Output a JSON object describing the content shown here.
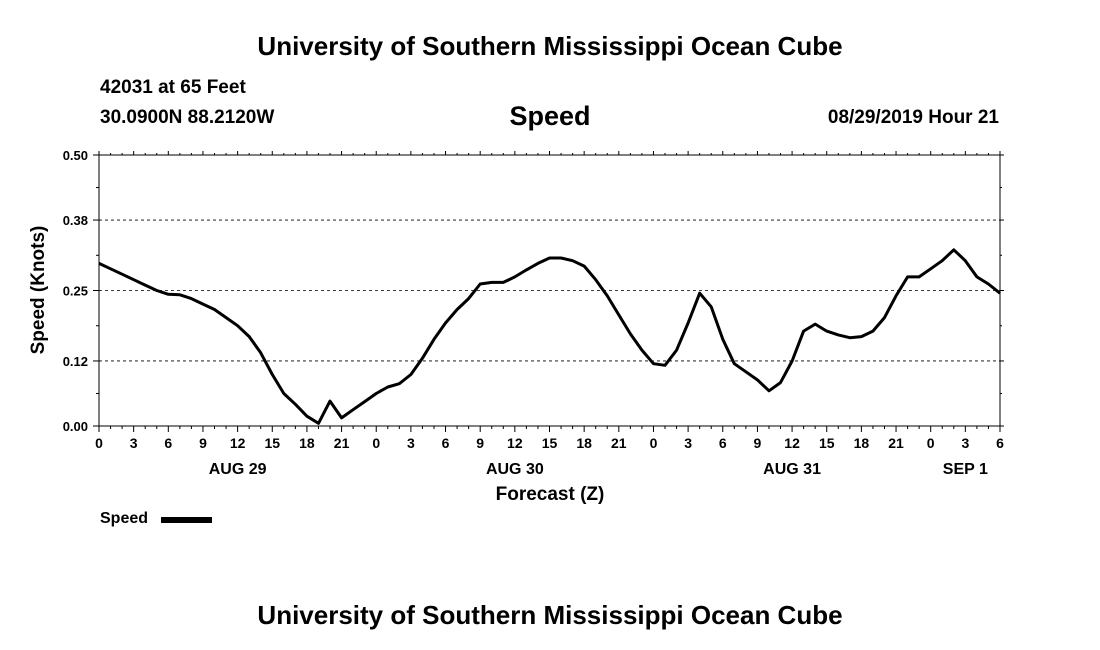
{
  "page": {
    "title_top": "University of Southern Mississippi Ocean Cube",
    "title_bottom": "University of Southern Mississippi Ocean Cube",
    "station": "42031 at 65 Feet",
    "location": "30.0900N 88.2120W",
    "variable": "Speed",
    "datetime": "08/29/2019 Hour 21"
  },
  "legend": {
    "label": "Speed"
  },
  "chart_data": {
    "type": "line",
    "title": "Speed",
    "xlabel": "Forecast (Z)",
    "ylabel": "Speed (Knots)",
    "xlim": [
      0,
      78
    ],
    "ylim": [
      0,
      0.5
    ],
    "yticks": [
      0.0,
      0.12,
      0.25,
      0.38,
      0.5
    ],
    "ytick_labels": [
      "0.00",
      "0.12",
      "0.25",
      "0.38",
      "0.50"
    ],
    "xtick_labels": [
      "0",
      "3",
      "6",
      "9",
      "12",
      "15",
      "18",
      "21",
      "0",
      "3",
      "6",
      "9",
      "12",
      "15",
      "18",
      "21",
      "0",
      "3",
      "6",
      "9",
      "12",
      "15",
      "18",
      "21",
      "0",
      "3",
      "6"
    ],
    "day_labels": [
      {
        "label": "AUG 29",
        "x": 12
      },
      {
        "label": "AUG 30",
        "x": 36
      },
      {
        "label": "AUG 31",
        "x": 60
      },
      {
        "label": "SEP 1",
        "x": 75
      }
    ],
    "grid": "dashed-y",
    "series": [
      {
        "name": "Speed",
        "color": "#000000",
        "x": [
          0,
          1,
          2,
          3,
          4,
          5,
          6,
          7,
          8,
          9,
          10,
          11,
          12,
          13,
          14,
          15,
          16,
          17,
          18,
          19,
          20,
          21,
          22,
          23,
          24,
          25,
          26,
          27,
          28,
          29,
          30,
          31,
          32,
          33,
          34,
          35,
          36,
          37,
          38,
          39,
          40,
          41,
          42,
          43,
          44,
          45,
          46,
          47,
          48,
          49,
          50,
          51,
          52,
          53,
          54,
          55,
          56,
          57,
          58,
          59,
          60,
          61,
          62,
          63,
          64,
          65,
          66,
          67,
          68,
          69,
          70,
          71,
          72,
          73,
          74,
          75,
          76,
          77,
          78
        ],
        "values": [
          0.3,
          0.29,
          0.28,
          0.27,
          0.26,
          0.25,
          0.243,
          0.242,
          0.235,
          0.225,
          0.215,
          0.2,
          0.185,
          0.165,
          0.135,
          0.095,
          0.06,
          0.04,
          0.018,
          0.005,
          0.046,
          0.015,
          0.03,
          0.045,
          0.06,
          0.072,
          0.078,
          0.095,
          0.125,
          0.16,
          0.19,
          0.215,
          0.235,
          0.262,
          0.265,
          0.265,
          0.275,
          0.288,
          0.3,
          0.31,
          0.31,
          0.305,
          0.295,
          0.27,
          0.24,
          0.205,
          0.17,
          0.14,
          0.115,
          0.112,
          0.14,
          0.19,
          0.245,
          0.22,
          0.16,
          0.115,
          0.1,
          0.085,
          0.065,
          0.08,
          0.12,
          0.175,
          0.188,
          0.175,
          0.168,
          0.163,
          0.165,
          0.175,
          0.2,
          0.24,
          0.275,
          0.275,
          0.29,
          0.305,
          0.325,
          0.305,
          0.275,
          0.262,
          0.245
        ]
      }
    ]
  }
}
